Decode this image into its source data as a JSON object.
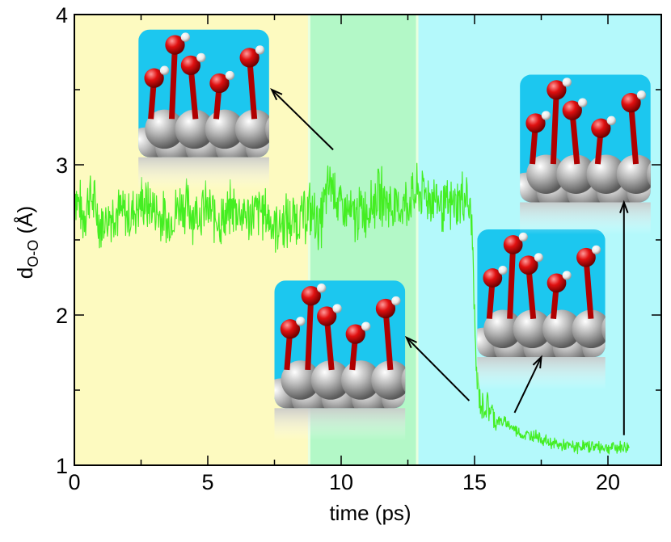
{
  "chart_data": {
    "type": "line",
    "title": "",
    "xlabel": "time (ps)",
    "ylabel": {
      "main": "d",
      "sub": "O-O",
      "unit": "(Å)"
    },
    "xlim": [
      0,
      22
    ],
    "ylim": [
      1,
      4
    ],
    "xticks": [
      0,
      5,
      10,
      15,
      20
    ],
    "yticks": [
      1,
      2,
      3,
      4
    ],
    "shaded_regions": [
      {
        "name": "region-1",
        "x0": 0,
        "x1": 8.8,
        "color": "#fdfac0"
      },
      {
        "name": "region-2",
        "x0": 8.8,
        "x1": 12.85,
        "color": "#b3f8c7"
      },
      {
        "name": "region-3",
        "x0": 12.85,
        "x1": 22,
        "color": "#b4f9fb"
      }
    ],
    "series": [
      {
        "name": "d_O-O",
        "color": "#44ee22",
        "x": [
          0,
          0.3,
          0.6,
          1.0,
          1.5,
          2.0,
          2.5,
          3.0,
          3.5,
          4.0,
          4.5,
          5.0,
          5.5,
          6.0,
          6.5,
          7.0,
          7.5,
          8.0,
          8.5,
          8.8,
          9.2,
          9.6,
          10.0,
          10.5,
          11.0,
          11.5,
          12.0,
          12.5,
          13.0,
          13.5,
          14.0,
          14.4,
          14.7,
          14.9,
          15.0,
          15.05,
          15.1,
          15.2,
          15.3,
          15.5,
          15.8,
          16.2,
          16.8,
          17.3,
          17.8,
          18.3,
          18.8,
          19.3,
          19.8,
          20.3,
          20.8
        ],
        "values": [
          2.85,
          2.65,
          2.8,
          2.6,
          2.7,
          2.65,
          2.75,
          2.7,
          2.6,
          2.75,
          2.68,
          2.7,
          2.62,
          2.72,
          2.65,
          2.7,
          2.6,
          2.62,
          2.65,
          2.7,
          2.6,
          2.9,
          2.7,
          2.65,
          2.72,
          2.8,
          2.7,
          2.75,
          2.82,
          2.78,
          2.7,
          2.75,
          2.8,
          2.6,
          2.0,
          1.7,
          1.55,
          1.45,
          1.38,
          1.4,
          1.3,
          1.28,
          1.2,
          1.2,
          1.15,
          1.13,
          1.12,
          1.13,
          1.12,
          1.12,
          1.12
        ]
      }
    ],
    "insets": [
      {
        "name": "inset-1",
        "x0": 2.4,
        "x1": 7.3,
        "ytop": 3.9,
        "ybot": 3.05,
        "arrow_from": [
          9.7,
          3.1
        ],
        "arrow_to": [
          7.4,
          3.5
        ]
      },
      {
        "name": "inset-2",
        "x0": 7.5,
        "x1": 12.4,
        "ytop": 2.23,
        "ybot": 1.38,
        "arrow_from": [
          14.8,
          1.43
        ],
        "arrow_to": [
          12.45,
          1.85
        ]
      },
      {
        "name": "inset-3",
        "x0": 15.1,
        "x1": 19.9,
        "ytop": 2.57,
        "ybot": 1.72,
        "arrow_from": [
          16.5,
          1.35
        ],
        "arrow_to": [
          17.5,
          1.72
        ]
      },
      {
        "name": "inset-4",
        "x0": 16.7,
        "x1": 21.6,
        "ytop": 3.6,
        "ybot": 2.75,
        "arrow_from": [
          20.6,
          1.2
        ],
        "arrow_to": [
          20.6,
          2.75
        ]
      }
    ]
  }
}
